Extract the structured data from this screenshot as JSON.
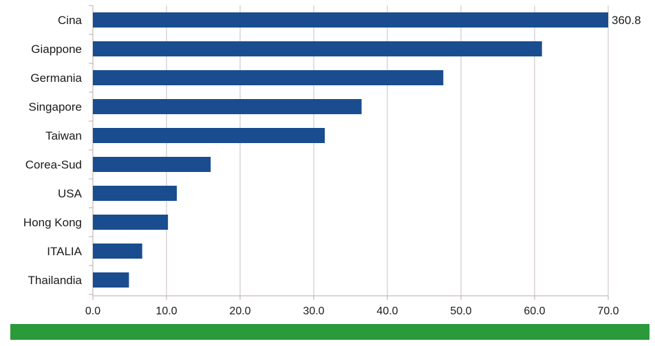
{
  "chart_data": {
    "type": "bar",
    "orientation": "horizontal",
    "categories": [
      "Cina",
      "Giappone",
      "Germania",
      "Singapore",
      "Taiwan",
      "Corea-Sud",
      "USA",
      "Hong Kong",
      "ITALIA",
      "Thailandia"
    ],
    "values": [
      360.8,
      61.0,
      47.6,
      36.5,
      31.5,
      16.0,
      11.4,
      10.2,
      6.7,
      4.9
    ],
    "data_labels": [
      "360.8",
      "",
      "",
      "",
      "",
      "",
      "",
      "",
      "",
      ""
    ],
    "xlim": [
      0,
      70
    ],
    "x_ticks": [
      "0.0",
      "10.0",
      "20.0",
      "30.0",
      "40.0",
      "50.0",
      "60.0",
      "70.0"
    ],
    "grid": "vertical",
    "legend": "none",
    "title": "",
    "xlabel": "",
    "ylabel": "",
    "colors": {
      "bar": "#1a4d8f",
      "grid": "#c8bcbc",
      "axis": "#b8aaaa",
      "footer": "#2a9a3a"
    }
  }
}
